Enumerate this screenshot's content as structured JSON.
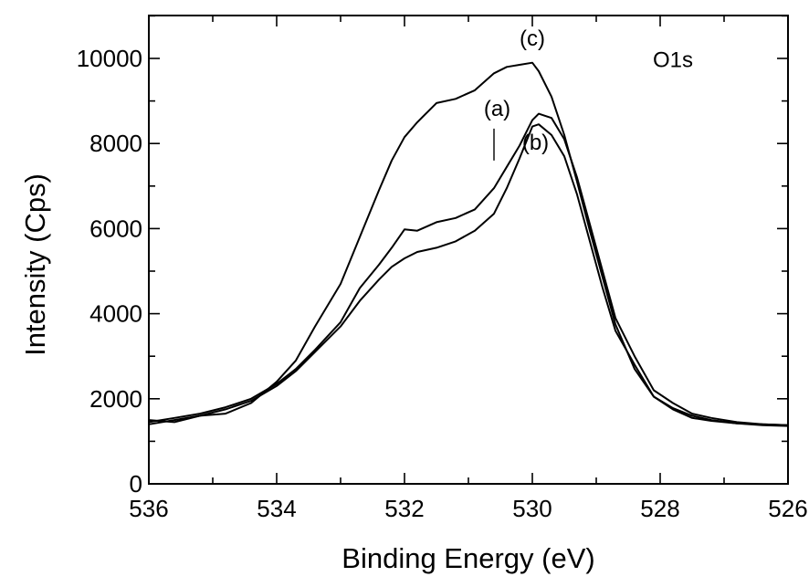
{
  "chart_data": {
    "type": "line",
    "xlabel": "Binding Energy (eV)",
    "ylabel": "Intensity (Cps)",
    "xlim": [
      536,
      526
    ],
    "ylim": [
      0,
      11000
    ],
    "x_reversed": true,
    "x_ticks": [
      536,
      534,
      532,
      530,
      528,
      526
    ],
    "x_tick_labels": [
      "536",
      "534",
      "532",
      "530",
      "528",
      "526"
    ],
    "y_ticks": [
      0,
      2000,
      4000,
      6000,
      8000,
      10000
    ],
    "y_tick_labels": [
      "0",
      "2000",
      "4000",
      "6000",
      "8000",
      "10000"
    ],
    "annotations": [
      {
        "text": "O1s",
        "x": 527.8,
        "y": 9800
      },
      {
        "text": "(c)",
        "x": 530.0,
        "y": 10300
      },
      {
        "text": "(a)",
        "x": 530.55,
        "y": 8650
      },
      {
        "text": "(b)",
        "x": 529.95,
        "y": 7850
      }
    ],
    "series": [
      {
        "label": "(a)",
        "x": [
          536.0,
          535.6,
          535.2,
          534.8,
          534.4,
          534.0,
          533.7,
          533.4,
          533.0,
          532.7,
          532.4,
          532.2,
          532.0,
          531.8,
          531.5,
          531.2,
          530.9,
          530.6,
          530.4,
          530.2,
          530.0,
          529.9,
          529.7,
          529.5,
          529.3,
          529.1,
          528.9,
          528.7,
          528.4,
          528.1,
          527.8,
          527.5,
          527.2,
          526.8,
          526.4,
          526.0
        ],
        "y": [
          1450,
          1550,
          1650,
          1800,
          2000,
          2350,
          2700,
          3150,
          3800,
          4600,
          5150,
          5550,
          5980,
          5950,
          6150,
          6250,
          6450,
          6950,
          7450,
          7950,
          8550,
          8700,
          8600,
          8100,
          7200,
          6100,
          5000,
          3900,
          3000,
          2200,
          1900,
          1650,
          1550,
          1450,
          1400,
          1380
        ]
      },
      {
        "label": "(b)",
        "x": [
          536.0,
          535.6,
          535.2,
          534.8,
          534.4,
          534.0,
          533.7,
          533.4,
          533.0,
          532.7,
          532.4,
          532.2,
          532.0,
          531.8,
          531.5,
          531.2,
          530.9,
          530.6,
          530.4,
          530.2,
          530.0,
          529.9,
          529.7,
          529.5,
          529.3,
          529.1,
          528.9,
          528.7,
          528.4,
          528.1,
          527.8,
          527.5,
          527.2,
          526.8,
          526.4,
          526.0
        ],
        "y": [
          1400,
          1500,
          1600,
          1750,
          1950,
          2300,
          2650,
          3100,
          3700,
          4300,
          4800,
          5100,
          5300,
          5450,
          5550,
          5700,
          5950,
          6350,
          6950,
          7650,
          8400,
          8450,
          8200,
          7700,
          6800,
          5700,
          4600,
          3600,
          2800,
          2050,
          1780,
          1600,
          1500,
          1420,
          1380,
          1360
        ]
      },
      {
        "label": "(c)",
        "x": [
          536.0,
          535.6,
          535.2,
          534.8,
          534.4,
          534.0,
          533.7,
          533.4,
          533.0,
          532.7,
          532.4,
          532.2,
          532.0,
          531.8,
          531.5,
          531.2,
          530.9,
          530.6,
          530.4,
          530.2,
          530.0,
          529.9,
          529.7,
          529.5,
          529.3,
          529.1,
          528.9,
          528.7,
          528.4,
          528.1,
          527.8,
          527.5,
          527.2,
          526.8,
          526.4,
          526.0
        ],
        "y": [
          1500,
          1450,
          1600,
          1650,
          1900,
          2400,
          2900,
          3700,
          4700,
          5800,
          6900,
          7600,
          8150,
          8500,
          8950,
          9050,
          9250,
          9650,
          9800,
          9850,
          9900,
          9700,
          9100,
          8200,
          7100,
          5950,
          4850,
          3750,
          2700,
          2050,
          1750,
          1550,
          1480,
          1420,
          1400,
          1380
        ]
      }
    ]
  }
}
